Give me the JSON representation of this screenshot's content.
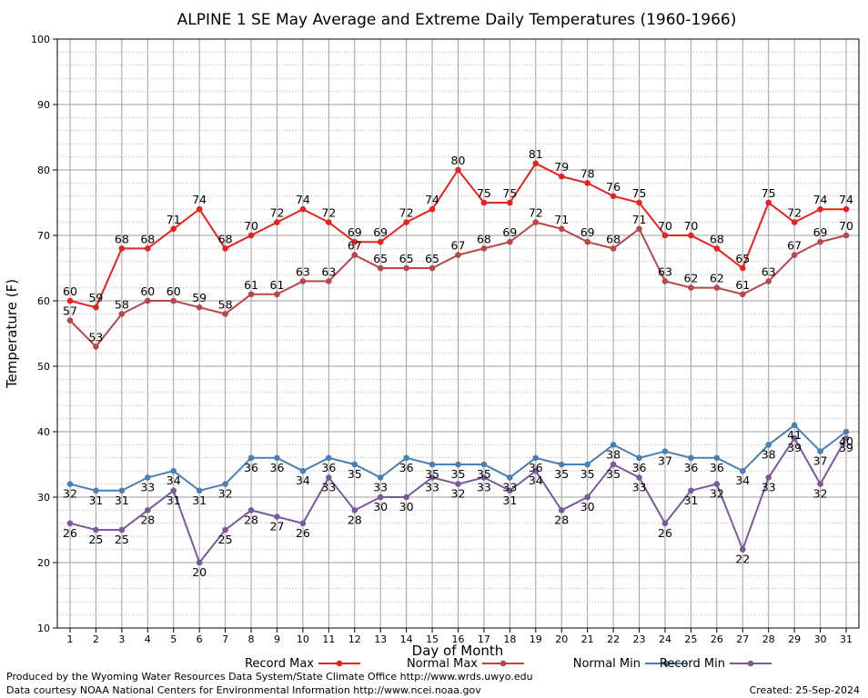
{
  "chart_data": {
    "type": "line",
    "title": "ALPINE 1 SE May Average and Extreme Daily Temperatures (1960-1966)",
    "xlabel": "Day of Month",
    "ylabel": "Temperature (F)",
    "ylim": [
      10,
      100
    ],
    "yticks": [
      10,
      20,
      30,
      40,
      50,
      60,
      70,
      80,
      90,
      100
    ],
    "x": [
      1,
      2,
      3,
      4,
      5,
      6,
      7,
      8,
      9,
      10,
      11,
      12,
      13,
      14,
      15,
      16,
      17,
      18,
      19,
      20,
      21,
      22,
      23,
      24,
      25,
      26,
      27,
      28,
      29,
      30,
      31
    ],
    "grid": true,
    "legend_position": "bottom",
    "series": [
      {
        "name": "Record Max",
        "color": "#e8221e",
        "values": [
          60,
          59,
          68,
          68,
          71,
          74,
          68,
          70,
          72,
          74,
          72,
          69,
          69,
          72,
          74,
          80,
          75,
          75,
          81,
          79,
          78,
          76,
          75,
          70,
          70,
          68,
          65,
          75,
          72,
          74,
          74
        ]
      },
      {
        "name": "Normal Max",
        "color": "#b8464a",
        "values": [
          57,
          53,
          58,
          60,
          60,
          59,
          58,
          61,
          61,
          63,
          63,
          67,
          65,
          65,
          65,
          67,
          68,
          69,
          72,
          71,
          69,
          68,
          71,
          63,
          62,
          62,
          61,
          63,
          67,
          69,
          70
        ]
      },
      {
        "name": "Normal Min",
        "color": "#4a7fb5",
        "values": [
          32,
          31,
          31,
          33,
          34,
          31,
          32,
          36,
          36,
          34,
          36,
          35,
          33,
          36,
          35,
          35,
          35,
          33,
          36,
          35,
          35,
          38,
          36,
          37,
          36,
          36,
          34,
          38,
          41,
          37,
          40
        ]
      },
      {
        "name": "Record Min",
        "color": "#7a5a9a",
        "values": [
          26,
          25,
          25,
          28,
          31,
          20,
          25,
          28,
          27,
          26,
          33,
          28,
          30,
          30,
          33,
          32,
          33,
          31,
          34,
          28,
          30,
          35,
          33,
          26,
          31,
          32,
          22,
          33,
          39,
          32,
          39
        ]
      }
    ]
  },
  "footer": {
    "produced_by": "Produced by the Wyoming Water Resources Data System/State Climate Office http://www.wrds.uwyo.edu",
    "courtesy": "Data courtesy NOAA National Centers for Environmental Information http://www.ncei.noaa.gov",
    "created": "Created:  25-Sep-2024"
  }
}
